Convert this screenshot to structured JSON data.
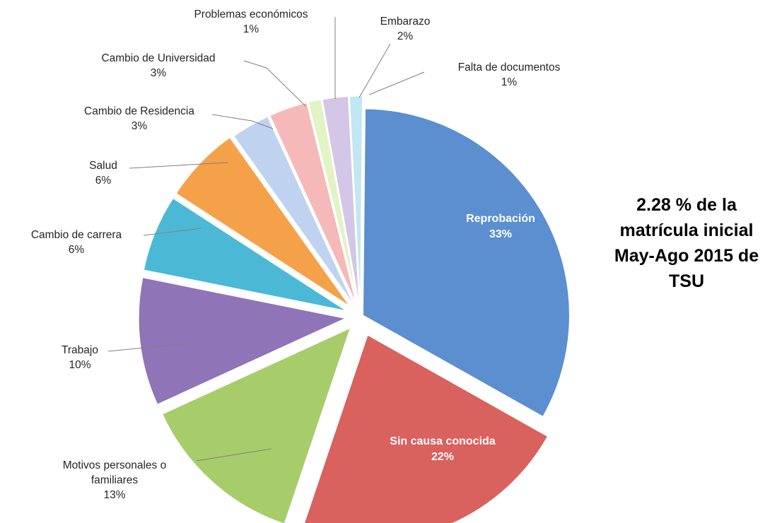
{
  "chart_data": {
    "type": "pie",
    "exploded": true,
    "slices": [
      {
        "label": [
          "Reprobación"
        ],
        "pct": "33%",
        "value": 33,
        "color": "#5b8fd0",
        "label_inside": true
      },
      {
        "label": [
          "Sin causa conocida"
        ],
        "pct": "22%",
        "value": 22,
        "color": "#d9615e",
        "label_inside": true
      },
      {
        "label": [
          "Motivos personales o",
          "familiares"
        ],
        "pct": "13%",
        "value": 13,
        "color": "#a7cd6b",
        "label_inside": false
      },
      {
        "label": [
          "Trabajo"
        ],
        "pct": "10%",
        "value": 10,
        "color": "#8f74b8",
        "label_inside": false
      },
      {
        "label": [
          "Cambio de carrera"
        ],
        "pct": "6%",
        "value": 6,
        "color": "#4bb9d6",
        "label_inside": false
      },
      {
        "label": [
          "Salud"
        ],
        "pct": "6%",
        "value": 6,
        "color": "#f5a14a",
        "label_inside": false
      },
      {
        "label": [
          "Cambio de Residencia"
        ],
        "pct": "3%",
        "value": 3,
        "color": "#bfd3f0",
        "label_inside": false
      },
      {
        "label": [
          "Cambio de Universidad"
        ],
        "pct": "3%",
        "value": 3,
        "color": "#f4b9b8",
        "label_inside": false
      },
      {
        "label": [
          "Problemas económicos"
        ],
        "pct": "1%",
        "value": 1,
        "color": "#e2f3c4",
        "label_inside": false
      },
      {
        "label": [
          "Embarazo"
        ],
        "pct": "2%",
        "value": 2,
        "color": "#d3c6e6",
        "label_inside": false
      },
      {
        "label": [
          "Falta de documentos"
        ],
        "pct": "1%",
        "value": 1,
        "color": "#c3e6f3",
        "label_inside": false
      }
    ]
  },
  "note": {
    "lines": [
      "2.28 % de la",
      "matrícula inicial",
      "May-Ago 2015 de",
      "TSU"
    ]
  }
}
